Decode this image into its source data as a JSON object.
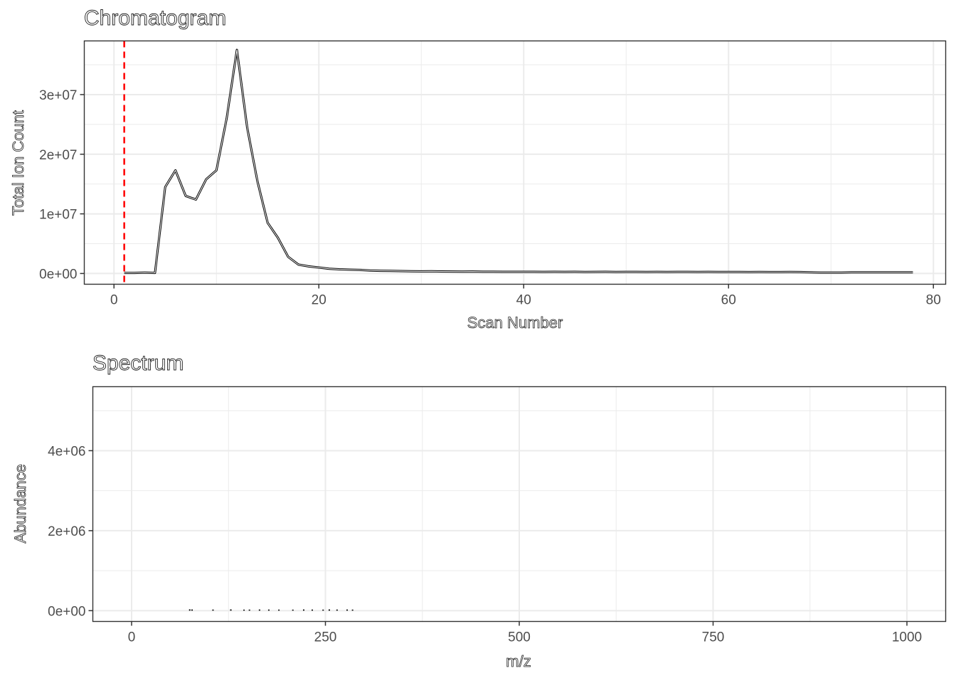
{
  "chart_data": [
    {
      "type": "line",
      "title": "Chromatogram",
      "xlabel": "Scan Number",
      "ylabel": "Total Ion Count",
      "xlim": [
        -2.9,
        81.2
      ],
      "ylim": [
        -1800000,
        39000000
      ],
      "x_ticks": [
        0,
        20,
        40,
        60,
        80
      ],
      "x_tick_labels": [
        "0",
        "20",
        "40",
        "60",
        "80"
      ],
      "y_ticks": [
        0,
        10000000,
        20000000,
        30000000
      ],
      "y_tick_labels": [
        "0e+00",
        "1e+07",
        "2e+07",
        "3e+07"
      ],
      "grid": true,
      "marker_line": {
        "x": 1,
        "color": "#ff0000",
        "style": "dashed"
      },
      "series": [
        {
          "x": [
            1,
            2,
            3,
            4,
            5,
            6,
            7,
            8,
            9,
            10,
            11,
            12,
            13,
            14,
            15,
            16,
            17,
            18,
            19,
            20,
            21,
            22,
            23,
            24,
            25,
            26,
            27,
            28,
            29,
            30,
            31,
            32,
            33,
            34,
            35,
            36,
            37,
            38,
            39,
            40,
            41,
            42,
            43,
            44,
            45,
            46,
            47,
            48,
            49,
            50,
            51,
            52,
            53,
            54,
            55,
            56,
            57,
            58,
            59,
            60,
            61,
            62,
            63,
            64,
            65,
            66,
            67,
            68,
            69,
            70,
            71,
            72,
            73,
            74,
            75,
            76,
            77,
            78
          ],
          "y": [
            100000,
            100000,
            150000,
            100000,
            14500000,
            17300000,
            13000000,
            12400000,
            15800000,
            17300000,
            26000000,
            37500000,
            24500000,
            15500000,
            8500000,
            6000000,
            2800000,
            1500000,
            1200000,
            1000000,
            800000,
            700000,
            650000,
            600000,
            500000,
            450000,
            430000,
            400000,
            380000,
            360000,
            380000,
            350000,
            330000,
            320000,
            330000,
            300000,
            300000,
            290000,
            280000,
            280000,
            280000,
            270000,
            280000,
            270000,
            280000,
            260000,
            270000,
            280000,
            260000,
            270000,
            270000,
            260000,
            270000,
            260000,
            270000,
            270000,
            260000,
            270000,
            260000,
            260000,
            260000,
            250000,
            260000,
            250000,
            250000,
            260000,
            250000,
            200000,
            150000,
            150000,
            150000,
            200000,
            200000,
            200000,
            200000,
            200000,
            200000,
            200000
          ]
        }
      ]
    },
    {
      "type": "bar",
      "title": "Spectrum",
      "xlabel": "m/z",
      "ylabel": "Abundance",
      "xlim": [
        -50,
        1050
      ],
      "ylim": [
        -270000,
        5600000
      ],
      "x_ticks": [
        0,
        250,
        500,
        750,
        1000
      ],
      "x_tick_labels": [
        "0",
        "250",
        "500",
        "750",
        "1000"
      ],
      "y_ticks": [
        0,
        2000000,
        4000000
      ],
      "y_tick_labels": [
        "0e+00",
        "2e+06",
        "4e+06"
      ],
      "grid": true,
      "series": [
        {
          "x": [
            75,
            78,
            105,
            128,
            145,
            152,
            165,
            177,
            190,
            208,
            222,
            233,
            247,
            255,
            265,
            278,
            285
          ],
          "y": [
            15000,
            12000,
            10000,
            14000,
            8000,
            9000,
            11000,
            10000,
            9000,
            8000,
            12000,
            10000,
            9000,
            13000,
            10000,
            11000,
            9000
          ]
        }
      ]
    }
  ]
}
